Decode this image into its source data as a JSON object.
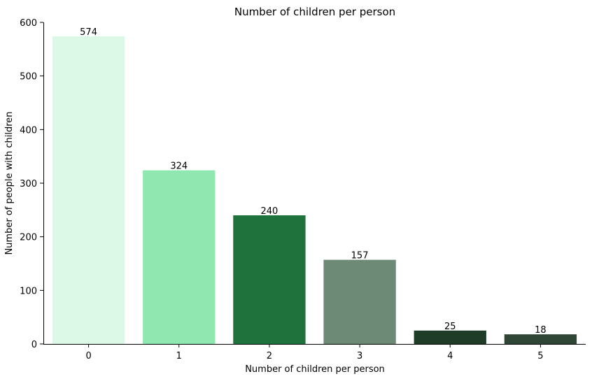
{
  "chart_data": {
    "type": "bar",
    "title": "Number of children per person",
    "xlabel": "Number of children per person",
    "ylabel": "Number of people with children",
    "categories": [
      "0",
      "1",
      "2",
      "3",
      "4",
      "5"
    ],
    "values": [
      574,
      324,
      240,
      157,
      25,
      18
    ],
    "data_labels": [
      "574",
      "324",
      "240",
      "157",
      "25",
      "18"
    ],
    "colors": [
      "#dcf9e8",
      "#90e8b0",
      "#1f723c",
      "#6c8a76",
      "#1f3c29",
      "#2f4636"
    ],
    "ylim": [
      0,
      600
    ],
    "yticks": [
      0,
      100,
      200,
      300,
      400,
      500,
      600
    ],
    "grid": false,
    "legend": "none"
  }
}
